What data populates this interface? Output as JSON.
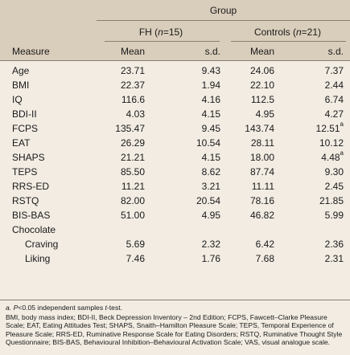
{
  "header": {
    "group": "Group",
    "fh_group_prefix": "FH (",
    "fh_group_n": "n",
    "fh_group_suffix": "=15)",
    "controls_group_prefix": "Controls (",
    "controls_group_n": "n",
    "controls_group_suffix": "=21)",
    "measure": "Measure",
    "mean": "Mean",
    "sd": "s.d."
  },
  "rows": [
    {
      "measure": "Age",
      "fh_mean": "23.71",
      "fh_sd": "9.43",
      "ct_mean": "24.06",
      "ct_sd": "7.37",
      "ct_sd_mark": ""
    },
    {
      "measure": "BMI",
      "fh_mean": "22.37",
      "fh_sd": "1.94",
      "ct_mean": "22.10",
      "ct_sd": "2.44",
      "ct_sd_mark": ""
    },
    {
      "measure": "IQ",
      "fh_mean": "116.6",
      "fh_sd": "4.16",
      "ct_mean": "112.5",
      "ct_sd": "6.74",
      "ct_sd_mark": ""
    },
    {
      "measure": "BDI-II",
      "fh_mean": "4.03",
      "fh_sd": "4.15",
      "ct_mean": "4.95",
      "ct_sd": "4.27",
      "ct_sd_mark": ""
    },
    {
      "measure": "FCPS",
      "fh_mean": "135.47",
      "fh_sd": "9.45",
      "ct_mean": "143.74",
      "ct_sd": "12.51",
      "ct_sd_mark": "a"
    },
    {
      "measure": "EAT",
      "fh_mean": "26.29",
      "fh_sd": "10.54",
      "ct_mean": "28.11",
      "ct_sd": "10.12",
      "ct_sd_mark": ""
    },
    {
      "measure": "SHAPS",
      "fh_mean": "21.21",
      "fh_sd": "4.15",
      "ct_mean": "18.00",
      "ct_sd": "4.48",
      "ct_sd_mark": "a"
    },
    {
      "measure": "TEPS",
      "fh_mean": "85.50",
      "fh_sd": "8.62",
      "ct_mean": "87.74",
      "ct_sd": "9.30",
      "ct_sd_mark": ""
    },
    {
      "measure": "RRS-ED",
      "fh_mean": "11.21",
      "fh_sd": "3.21",
      "ct_mean": "11.11",
      "ct_sd": "2.45",
      "ct_sd_mark": ""
    },
    {
      "measure": "RSTQ",
      "fh_mean": "82.00",
      "fh_sd": "20.54",
      "ct_mean": "78.16",
      "ct_sd": "21.85",
      "ct_sd_mark": ""
    },
    {
      "measure": "BIS-BAS",
      "fh_mean": "51.00",
      "fh_sd": "4.95",
      "ct_mean": "46.82",
      "ct_sd": "5.99",
      "ct_sd_mark": ""
    }
  ],
  "chocolate": {
    "label": "Chocolate",
    "rows": [
      {
        "measure": "Craving",
        "fh_mean": "5.69",
        "fh_sd": "2.32",
        "ct_mean": "6.42",
        "ct_sd": "2.36"
      },
      {
        "measure": "Liking",
        "fh_mean": "7.46",
        "fh_sd": "1.76",
        "ct_mean": "7.68",
        "ct_sd": "2.31"
      }
    ]
  },
  "footnotes": {
    "a_prefix": "a. ",
    "a_p": "P",
    "a_mid": "<0.05 independent samples ",
    "a_t": "t",
    "a_suffix": "-test.",
    "abbreviations": "BMI, body mass index; BDI-II, Beck Depression Inventory – 2nd Edition; FCPS, Fawcett–Clarke Pleasure Scale; EAT, Eating Attitudes Test; SHAPS, Snaith–Hamilton Pleasure Scale; TEPS, Temporal Experience of Pleasure Scale; RRS-ED, Ruminative Response Scale for Eating Disorders; RSTQ, Ruminative Thought Style Questionnaire; BIS-BAS, Behavioural Inhibition–Behavioural Activation Scale; VAS, visual analogue scale."
  }
}
